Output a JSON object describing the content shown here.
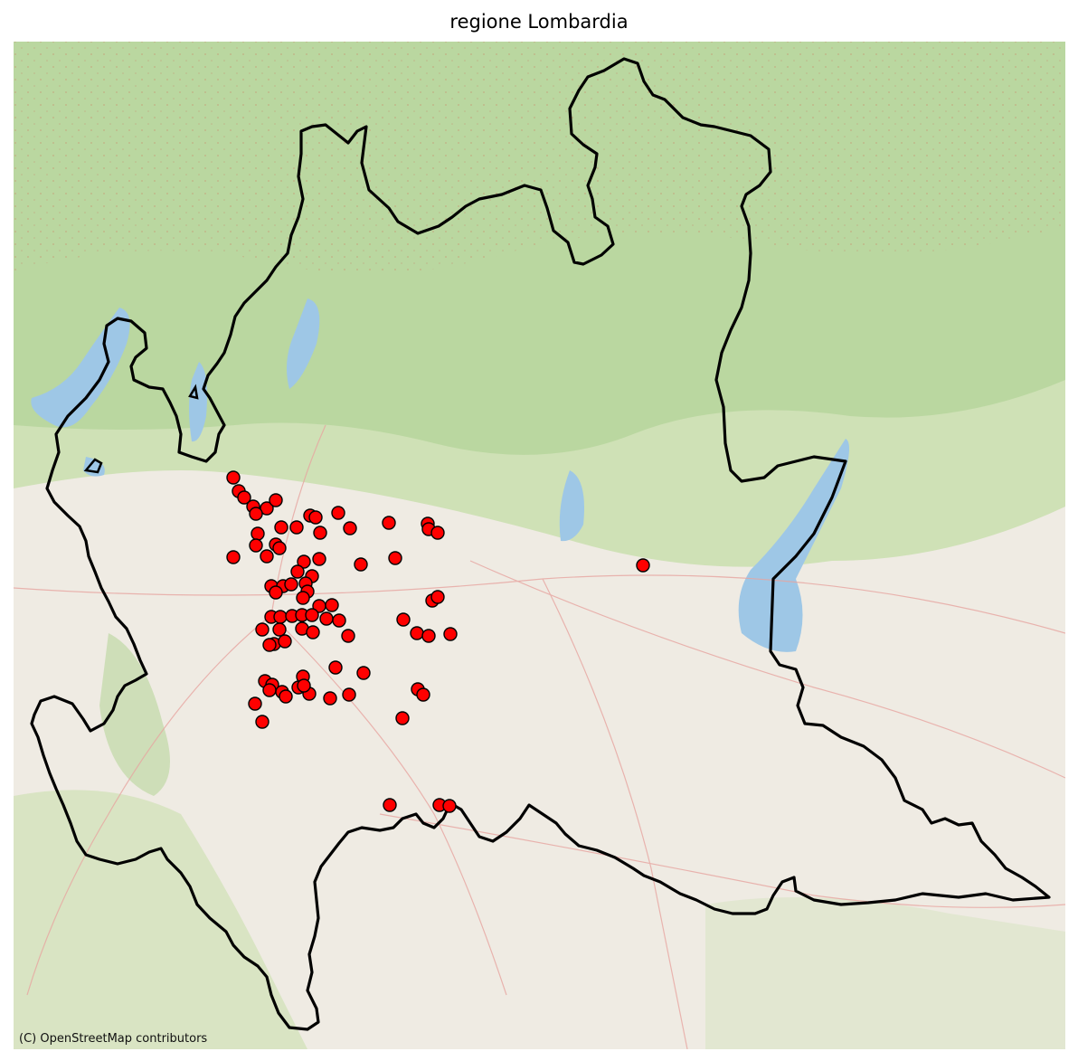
{
  "map": {
    "title": "regione Lombardia",
    "attribution": "(C) OpenStreetMap contributors",
    "basemap": "openstreetmap",
    "colors": {
      "background": "#efebe3",
      "mountain": "#c9dfae",
      "forest": "#a9cf8e",
      "water": "#9ec7e6",
      "road": "#e7a5a0",
      "border": "#000000",
      "marker_fill": "#ff0000",
      "marker_stroke": "#000000"
    },
    "layers": [
      "basemap-tiles",
      "region-boundary",
      "point-markers"
    ],
    "marker_count": 100
  }
}
